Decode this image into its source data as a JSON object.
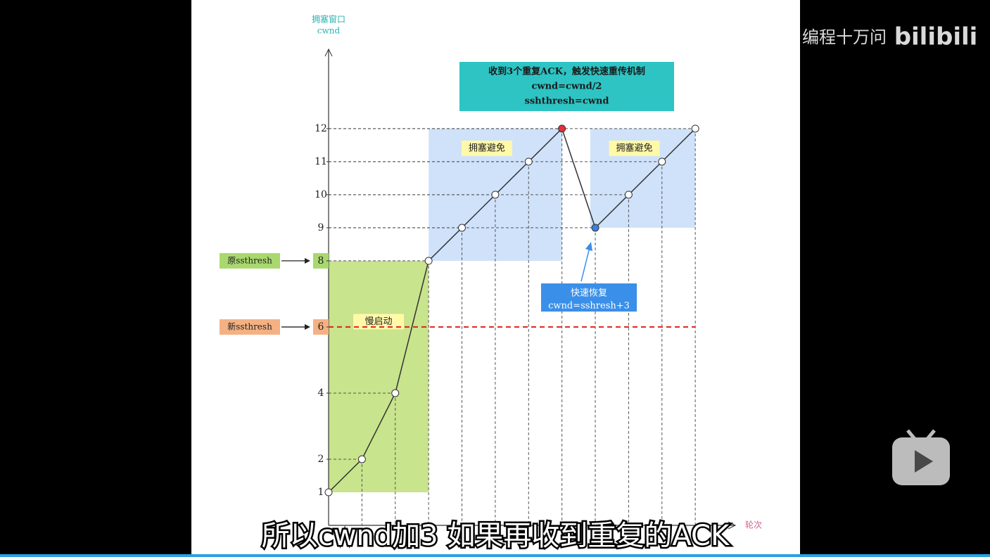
{
  "video": {
    "watermark": "编程十万问",
    "logo": "bilibili",
    "subtitle": "所以cwnd加3 如果再收到重复的ACK"
  },
  "chart_data": {
    "type": "line",
    "ylabel_lines": [
      "拥塞窗口",
      "cwnd"
    ],
    "xlabel": "轮次",
    "x": [
      1,
      2,
      3,
      4,
      5,
      6,
      7,
      8,
      9,
      10,
      11,
      12
    ],
    "values": [
      1,
      2,
      4,
      8,
      9,
      10,
      11,
      12,
      9,
      10,
      11,
      12
    ],
    "point_colors": [
      "#ffffff",
      "#ffffff",
      "#ffffff",
      "#ffffff",
      "#ffffff",
      "#ffffff",
      "#ffffff",
      "#e0303a",
      "#3a80e0",
      "#ffffff",
      "#ffffff",
      "#ffffff"
    ],
    "line_color": "#333333",
    "xlim": [
      1,
      13.2
    ],
    "ylim": [
      0,
      14.4
    ],
    "yticks": [
      1,
      2,
      4,
      6,
      8,
      9,
      10,
      11,
      12
    ],
    "thresholds": [
      {
        "label": "原ssthresh",
        "value": 8,
        "color": "#a9d86e",
        "line": false
      },
      {
        "label": "新ssthresh",
        "value": 6,
        "color": "#f4b183",
        "line": true
      }
    ],
    "regions": [
      {
        "label": "慢启动",
        "x": [
          1,
          4
        ],
        "y": [
          1,
          8
        ],
        "color": "#c8e48c"
      },
      {
        "label": "拥塞避免",
        "x": [
          4,
          8
        ],
        "y": [
          8,
          12
        ],
        "color": "#cfe2fa"
      },
      {
        "label": "拥塞避免",
        "x": [
          8.85,
          12
        ],
        "y": [
          9,
          12
        ],
        "color": "#cfe2fa"
      }
    ],
    "annotations": [
      {
        "lines": [
          "收到3个重复ACK，触发快速重传机制",
          "cwnd=cwnd/2",
          "sshthresh=cwnd"
        ],
        "color": "#2ec4c4"
      },
      {
        "lines": [
          "快速恢复",
          "cwnd=sshresh+3"
        ],
        "color": "#3a8fe8"
      }
    ]
  }
}
